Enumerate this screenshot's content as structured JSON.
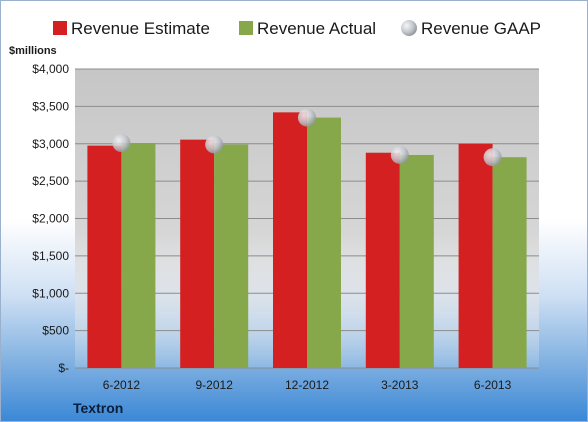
{
  "colors": {
    "estimate": "#d42020",
    "actual": "#86a84a",
    "gaap": "#c2c6cc"
  },
  "chart_data": {
    "type": "bar",
    "ylabel": "$millions",
    "company": "Textron",
    "categories": [
      "6-2012",
      "9-2012",
      "12-2012",
      "3-2013",
      "6-2013"
    ],
    "series": [
      {
        "name": "Revenue Estimate",
        "kind": "bar",
        "values": [
          2975,
          3055,
          3420,
          2880,
          3000
        ]
      },
      {
        "name": "Revenue Actual",
        "kind": "bar",
        "values": [
          3010,
          2990,
          3350,
          2850,
          2820
        ]
      },
      {
        "name": "Revenue GAAP",
        "kind": "marker",
        "values": [
          3010,
          2990,
          3350,
          2850,
          2820
        ]
      }
    ],
    "ylim": [
      0,
      4000
    ],
    "yticks": [
      0,
      500,
      1000,
      1500,
      2000,
      2500,
      3000,
      3500,
      4000
    ],
    "ytick_labels": [
      "$-",
      "$500",
      "$1,000",
      "$1,500",
      "$2,000",
      "$2,500",
      "$3,000",
      "$3,500",
      "$4,000"
    ],
    "grid": true,
    "legend": "top"
  }
}
